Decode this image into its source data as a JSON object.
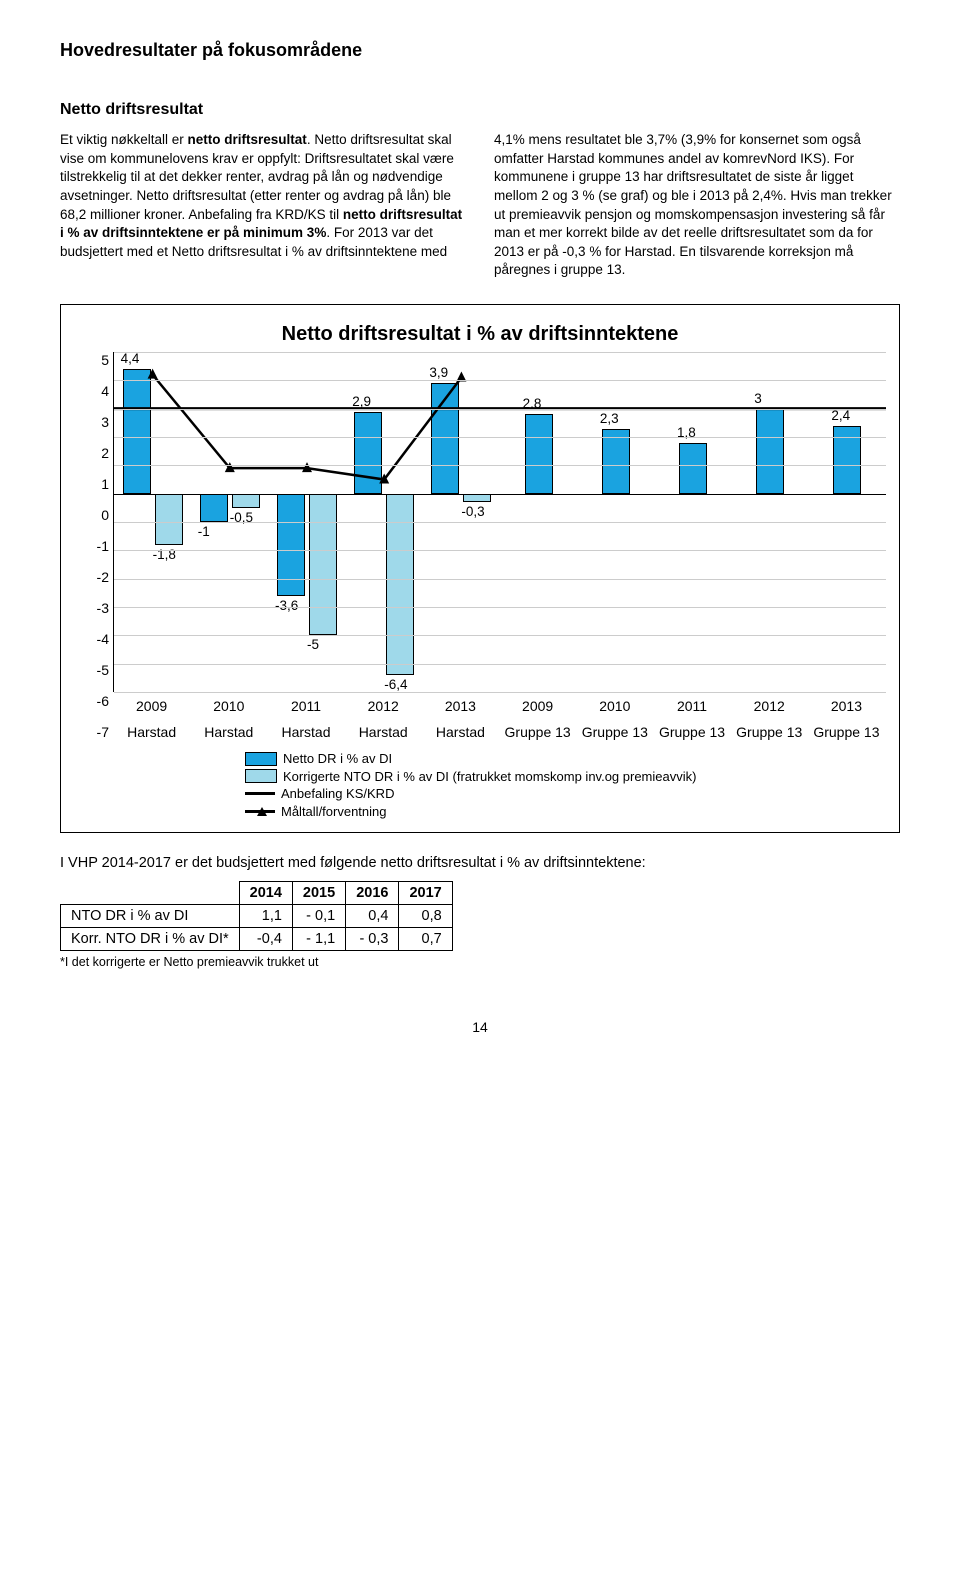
{
  "page_title": "Hovedresultater på fokusområdene",
  "section_title": "Netto driftsresultat",
  "col_left_html": "Et viktig nøkkeltall er <b>netto driftsresultat</b>. Netto driftsresultat skal vise om kommunelovens krav er oppfylt: Driftsresultatet skal være tilstrekkelig til at det dekker renter, avdrag på lån og nødvendige avsetninger. Netto driftsresultat (etter renter og avdrag på lån) ble 68,2 millioner kroner. Anbefaling fra KRD/KS til <b>netto driftsresultat i % av driftsinntektene er på minimum 3%</b>. For 2013 var det budsjettert med et Netto driftsresultat i % av driftsinntektene med",
  "col_right": "4,1% mens resultatet ble 3,7% (3,9% for konsernet som også omfatter Harstad kommunes andel av komrevNord IKS). For kommunene i gruppe 13 har driftsresultatet de siste år ligget mellom 2 og 3 % (se graf) og ble i 2013 på 2,4%. Hvis man trekker ut premieavvik pensjon og momskompensasjon investering så får man et mer korrekt bilde av det reelle driftsresultatet som da for 2013 er på -0,3 % for Harstad. En tilsvarende korreksjon må påregnes i gruppe 13.",
  "chart": {
    "title": "Netto driftsresultat i % av driftsinntektene",
    "ymin": -7,
    "ymax": 5,
    "step": 1,
    "groups": [
      {
        "year": "2009",
        "sub": "Harstad",
        "netto": 4.4,
        "korr": -1.8,
        "maal": 4.2
      },
      {
        "year": "2010",
        "sub": "Harstad",
        "netto": -1,
        "korr": -0.5,
        "maal": 0.9
      },
      {
        "year": "2011",
        "sub": "Harstad",
        "netto": -3.6,
        "korr": -5.0,
        "maal": 0.9
      },
      {
        "year": "2012",
        "sub": "Harstad",
        "netto": 2.9,
        "korr": -6.4,
        "maal": 0.5
      },
      {
        "year": "2013",
        "sub": "Harstad",
        "netto": 3.9,
        "korr": -0.3,
        "maal": 4.1
      },
      {
        "year": "2009",
        "sub": "Gruppe 13",
        "netto": 2.8
      },
      {
        "year": "2010",
        "sub": "Gruppe 13",
        "netto": 2.3
      },
      {
        "year": "2011",
        "sub": "Gruppe 13",
        "netto": 1.8
      },
      {
        "year": "2012",
        "sub": "Gruppe 13",
        "netto": 3.0
      },
      {
        "year": "2013",
        "sub": "Gruppe 13",
        "netto": 2.4
      }
    ],
    "rec_line": 3,
    "legend": {
      "netto": "Netto DR i % av DI",
      "korr": "Korrigerte NTO DR i % av DI (fratrukket momskomp inv.og premieavvik)",
      "rec": "Anbefaling KS/KRD",
      "maal": "Måltall/forventning"
    },
    "colors": {
      "netto": "#1aa3e0",
      "korr": "#9fd9ea",
      "line": "#000000",
      "grid": "#cccccc"
    }
  },
  "after_text": "I VHP 2014-2017 er det budsjettert med følgende netto driftsresultat i % av driftsinntektene:",
  "table": {
    "headers": [
      "",
      "2014",
      "2015",
      "2016",
      "2017"
    ],
    "rows": [
      [
        "NTO DR i % av DI",
        "1,1",
        "- 0,1",
        "0,4",
        "0,8"
      ],
      [
        "Korr. NTO DR i % av DI*",
        "-0,4",
        "- 1,1",
        "- 0,3",
        "0,7"
      ]
    ],
    "footnote": "*I det korrigerte er Netto premieavvik trukket ut"
  },
  "pagenum": "14"
}
